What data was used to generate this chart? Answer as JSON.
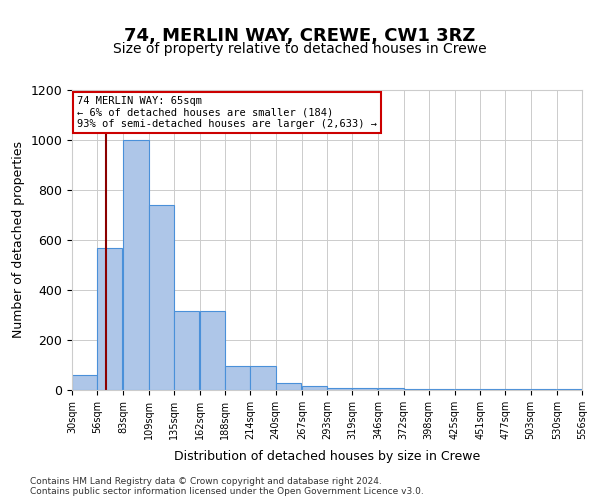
{
  "title": "74, MERLIN WAY, CREWE, CW1 3RZ",
  "subtitle": "Size of property relative to detached houses in Crewe",
  "xlabel": "Distribution of detached houses by size in Crewe",
  "ylabel": "Number of detached properties",
  "bins": [
    30,
    56,
    83,
    109,
    135,
    162,
    188,
    214,
    240,
    267,
    293,
    319,
    346,
    372,
    398,
    425,
    451,
    477,
    503,
    530,
    556
  ],
  "bar_heights": [
    60,
    570,
    1000,
    740,
    315,
    315,
    95,
    95,
    30,
    15,
    8,
    8,
    8,
    5,
    3,
    3,
    3,
    3,
    3,
    3
  ],
  "bar_color": "#aec6e8",
  "bar_edge_color": "#4a90d9",
  "ylim": [
    0,
    1200
  ],
  "property_line_x": 65,
  "property_line_color": "#8b0000",
  "annotation_text": "74 MERLIN WAY: 65sqm\n← 6% of detached houses are smaller (184)\n93% of semi-detached houses are larger (2,633) →",
  "annotation_box_color": "#ffffff",
  "annotation_box_edge_color": "#cc0000",
  "footer_line1": "Contains HM Land Registry data © Crown copyright and database right 2024.",
  "footer_line2": "Contains public sector information licensed under the Open Government Licence v3.0.",
  "background_color": "#ffffff",
  "tick_labels": [
    "30sqm",
    "56sqm",
    "83sqm",
    "109sqm",
    "135sqm",
    "162sqm",
    "188sqm",
    "214sqm",
    "240sqm",
    "267sqm",
    "293sqm",
    "319sqm",
    "346sqm",
    "372sqm",
    "398sqm",
    "425sqm",
    "451sqm",
    "477sqm",
    "503sqm",
    "530sqm",
    "556sqm"
  ]
}
